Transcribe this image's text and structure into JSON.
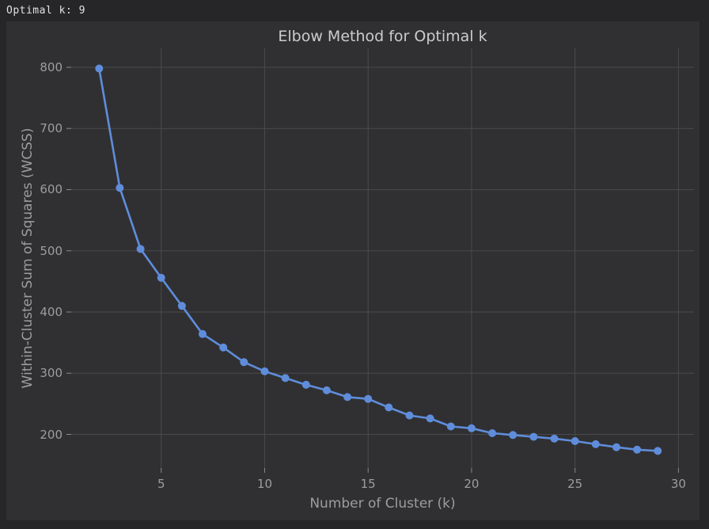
{
  "terminal": {
    "output_line": "Optimal k: 9"
  },
  "colors": {
    "terminal_bg": "#262628",
    "figure_bg": "#303032",
    "grid": "#4a4a4c",
    "tick_mark": "#8a8a8a",
    "tick_label": "#9d9d9d",
    "title_text": "#cccccc",
    "line": "#5f8ddb"
  },
  "chart_data": {
    "type": "line",
    "title": "Elbow Method for Optimal k",
    "xlabel": "Number of Cluster (k)",
    "ylabel": "Within-Cluster Sum of Squares (WCSS)",
    "series": [
      {
        "name": "WCSS",
        "x": [
          2,
          3,
          4,
          5,
          6,
          7,
          8,
          9,
          10,
          11,
          12,
          13,
          14,
          15,
          16,
          17,
          18,
          19,
          20,
          21,
          22,
          23,
          24,
          25,
          26,
          27,
          28,
          29
        ],
        "values": [
          798,
          603,
          503,
          456,
          410,
          364,
          342,
          318,
          303,
          292,
          281,
          272,
          261,
          258,
          244,
          231,
          226,
          213,
          210,
          202,
          199,
          196,
          193,
          189,
          184,
          179,
          175,
          173
        ]
      }
    ],
    "x_ticks": [
      5,
      10,
      15,
      20,
      25,
      30
    ],
    "y_ticks": [
      200,
      300,
      400,
      500,
      600,
      700,
      800
    ],
    "xlim": [
      0.65,
      30.75
    ],
    "ylim": [
      145,
      831
    ],
    "grid": true,
    "legend": "none",
    "marker": "circle",
    "annotated_optimal_k": 9
  }
}
